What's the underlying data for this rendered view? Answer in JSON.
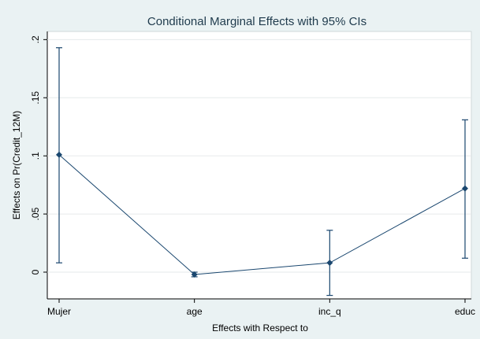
{
  "chart_data": {
    "type": "line",
    "title": "Conditional Marginal Effects with 95% CIs",
    "x_label": "Effects with Respect to",
    "y_label": "Effects on Pr(Credit_12M)",
    "categories": [
      "Mujer",
      "age",
      "inc_q",
      "educ"
    ],
    "series": [
      {
        "color": "#1a476f",
        "values": [
          0.101,
          -0.002,
          0.008,
          0.072
        ],
        "ci_lower": [
          0.008,
          -0.004,
          -0.02,
          0.012
        ],
        "ci_upper": [
          0.193,
          0.0,
          0.036,
          0.131
        ]
      }
    ],
    "ylim": [
      -0.023,
      0.207
    ],
    "yticks": [
      0,
      {
        "value": 0.05,
        "label": ".05"
      },
      {
        "value": 0.1,
        "label": ".1"
      },
      {
        "value": 0.15,
        "label": ".15"
      },
      {
        "value": 0.2,
        "label": ".2"
      }
    ],
    "grid": true
  }
}
